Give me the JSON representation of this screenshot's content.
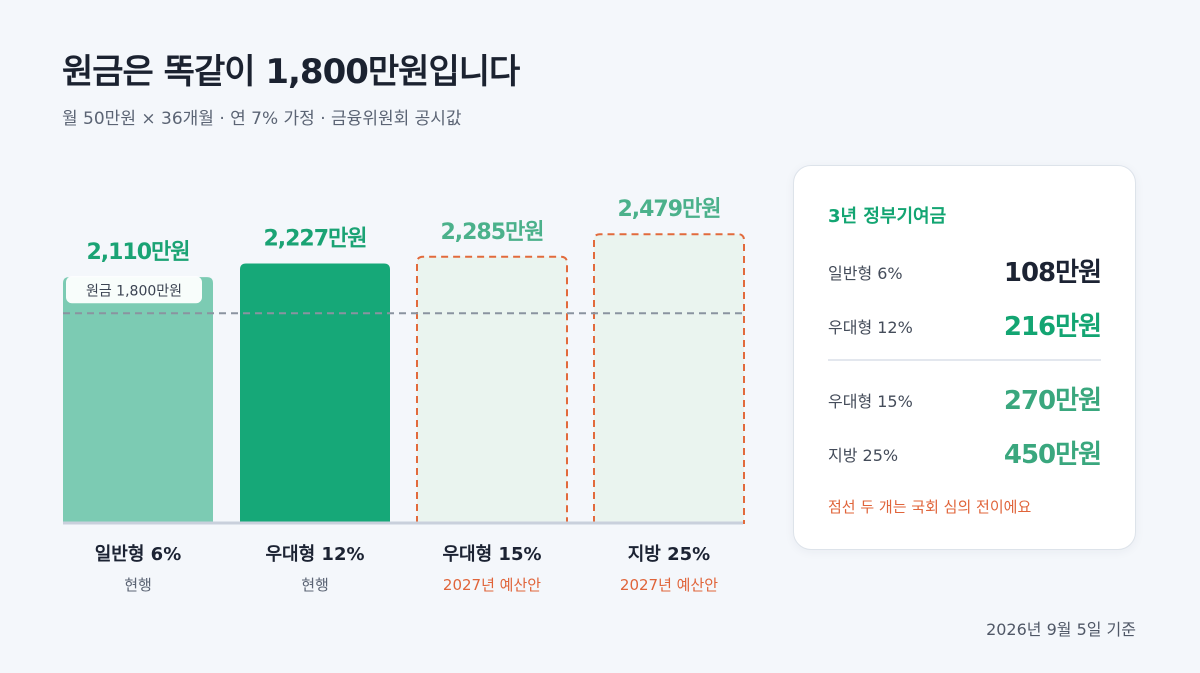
{
  "header": {
    "title": "원금은 똑같이 1,800만원입니다",
    "subtitle": "월 50만원 × 36개월 · 연 7% 가정 · 금융위원회 공시값"
  },
  "chart_data": {
    "type": "bar",
    "title": "원금은 똑같이 1,800만원입니다",
    "categories": [
      "일반형 6%",
      "우대형 12%",
      "우대형 15%",
      "지방 25%"
    ],
    "values": [
      2110,
      2227,
      2285,
      2479
    ],
    "value_labels": [
      "2,110만원",
      "2,227만원",
      "2,285만원",
      "2,479만원"
    ],
    "sublabels": [
      "현행",
      "현행",
      "2027년 예산안",
      "2027년 예산안"
    ],
    "status": [
      "current",
      "current",
      "proposed",
      "proposed"
    ],
    "unit": "만원",
    "reference_line": {
      "value": 1800,
      "label": "원금 1,800만원"
    },
    "ylim": [
      0,
      2600
    ],
    "grid": false,
    "colors": {
      "current_light": "#7ccbb3",
      "current_dark": "#16a878",
      "proposed_fill": "#eaf4ef",
      "proposed_stroke": "#e26a3c",
      "baseline": "#c9d0dc",
      "reference": "#8a93a0",
      "green_text": "#1aa374",
      "orange_text": "#e0643a"
    }
  },
  "panel": {
    "title": "3년 정부기여금",
    "rows": [
      {
        "label": "일반형 6%",
        "value": "108만원",
        "color": "#1c2333"
      },
      {
        "label": "우대형 12%",
        "value": "216만원",
        "color": "#13a572"
      },
      {
        "label": "우대형 15%",
        "value": "270만원",
        "color": "#3aa77e"
      },
      {
        "label": "지방 25%",
        "value": "450만원",
        "color": "#3aa77e"
      }
    ],
    "note": "점선 두 개는 국회 심의 전이에요"
  },
  "footer": {
    "date": "2026년 9월 5일 기준"
  }
}
